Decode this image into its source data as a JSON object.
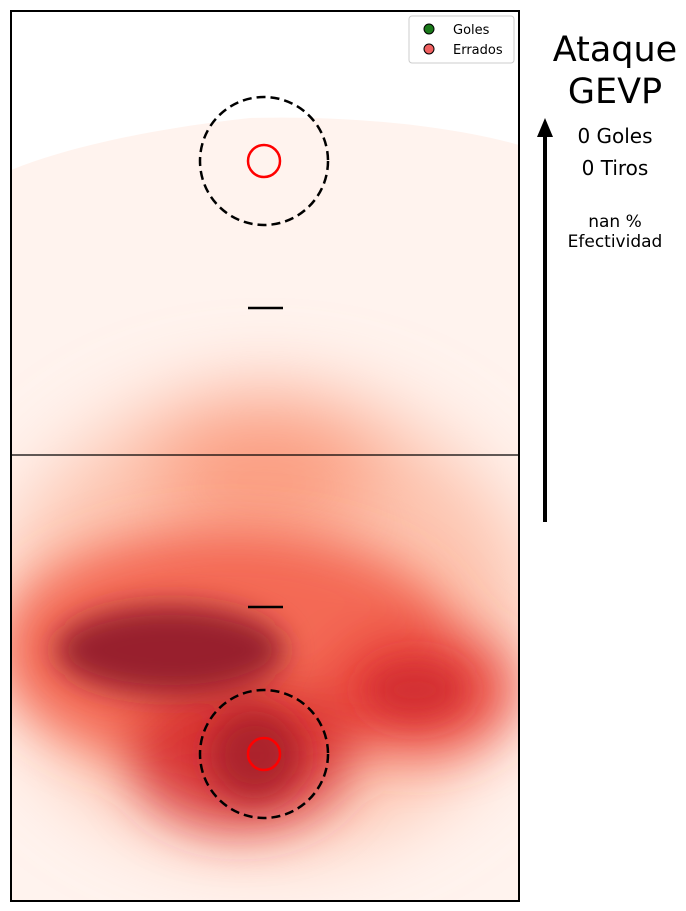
{
  "chart_data": {
    "type": "heatmap",
    "title": "",
    "xlabel": "",
    "ylabel": "",
    "legend": {
      "placement": "top-right",
      "entries": [
        {
          "label": "Goles",
          "color": "#1a7a1a"
        },
        {
          "label": "Errados",
          "color": "#f06060"
        }
      ]
    },
    "colormap": "Reds",
    "density_peaks": [
      {
        "zone": "left-mid-lower",
        "intensity": 1.0
      },
      {
        "zone": "center-goal-lower",
        "intensity": 0.95
      },
      {
        "zone": "right-mid-lower",
        "intensity": 0.8
      },
      {
        "zone": "center-mid",
        "intensity": 0.55
      }
    ]
  },
  "side_panel": {
    "title_line1": "Ataque",
    "title_line2": "GEVP",
    "goals": "0 Goles",
    "shots": "0 Tiros",
    "effectiveness_value": "nan %",
    "effectiveness_label": "Efectividad"
  },
  "colors": {
    "heat_low": "#fff3ee",
    "heat_high": "#7f1a26",
    "hoop": "#ff0000",
    "lines": "#000000"
  }
}
